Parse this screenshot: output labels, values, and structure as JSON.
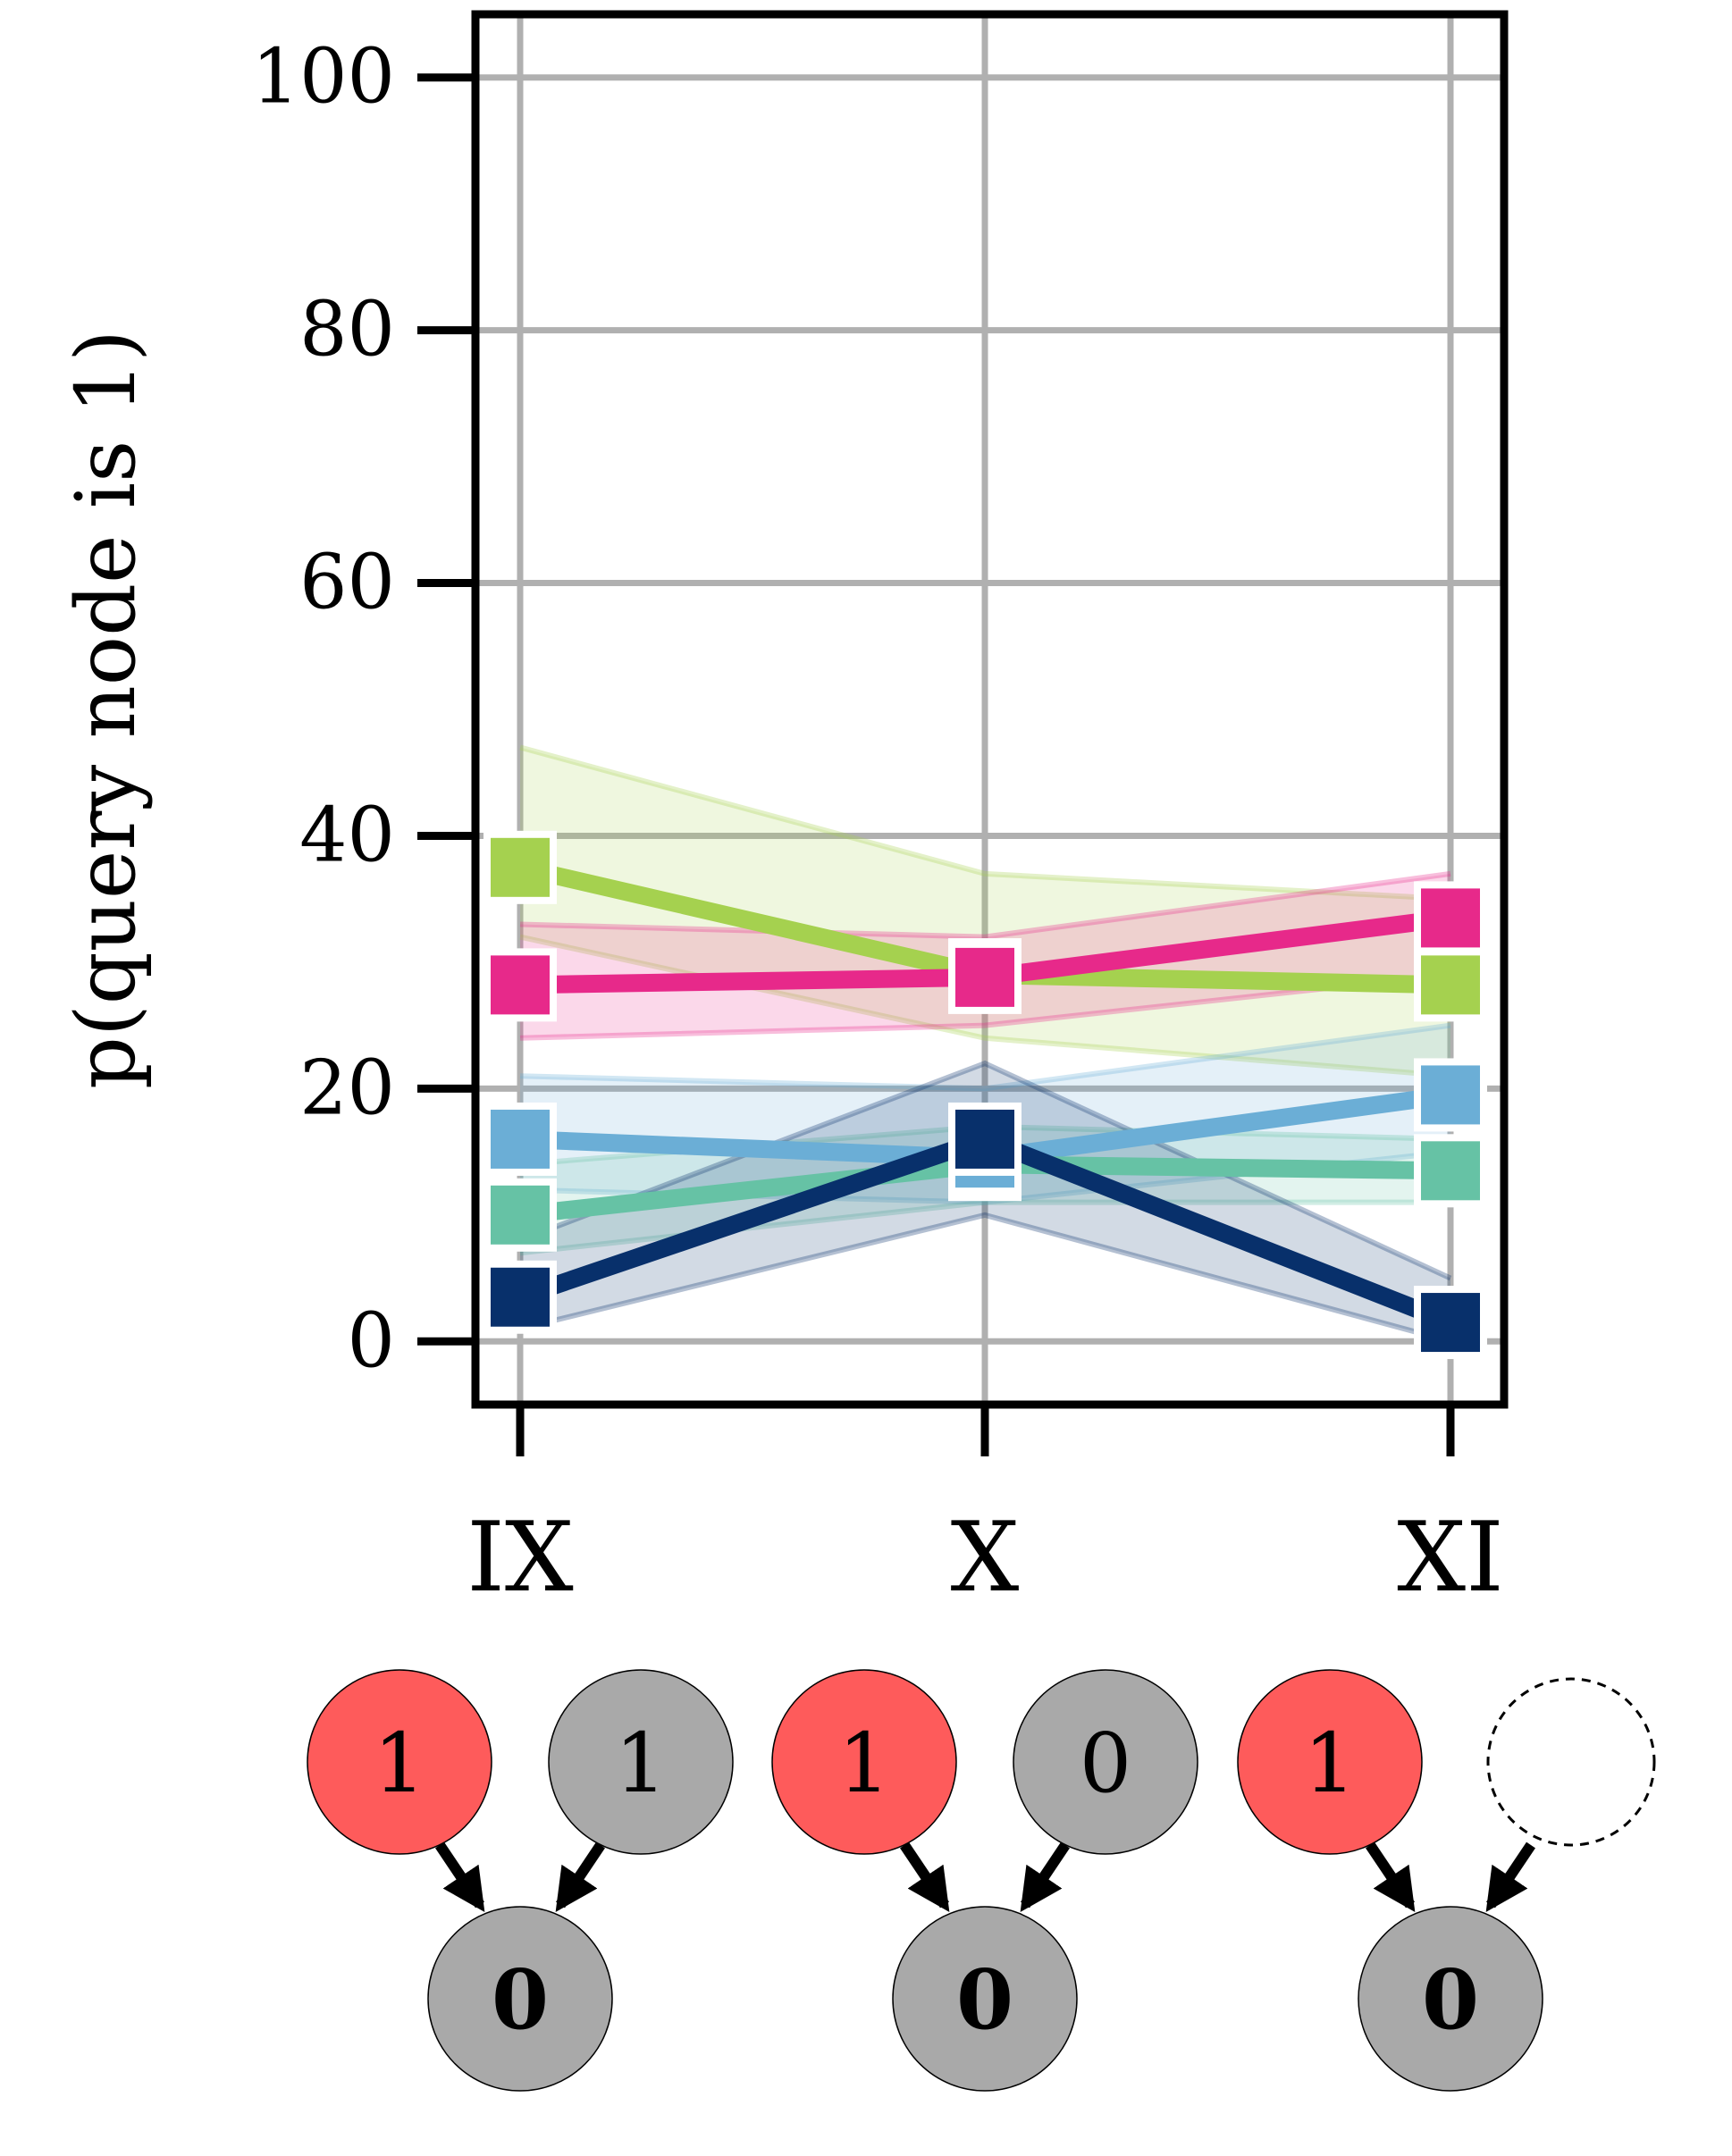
{
  "chart_data": {
    "type": "line",
    "title": "",
    "xlabel": "",
    "ylabel": "p(query node is 1)",
    "categories": [
      "IX",
      "X",
      "XI"
    ],
    "ylim": [
      -5,
      105
    ],
    "yticks": [
      0,
      20,
      40,
      60,
      80,
      100
    ],
    "grid": true,
    "legend": "none",
    "series": [
      {
        "color": "#a5d14f",
        "values": [
          37.5,
          29.0,
          28.2
        ],
        "band_low": [
          32,
          24,
          21
        ],
        "band_high": [
          47,
          37,
          35
        ]
      },
      {
        "color": "#e7298a",
        "values": [
          28.2,
          28.8,
          33.5
        ],
        "band_low": [
          24,
          25,
          29
        ],
        "band_high": [
          33,
          32,
          37
        ]
      },
      {
        "color": "#6baed6",
        "values": [
          16.0,
          14.5,
          19.5
        ],
        "band_low": [
          12,
          11,
          15
        ],
        "band_high": [
          21,
          20,
          25
        ]
      },
      {
        "color": "#66c2a5",
        "values": [
          10.0,
          14.0,
          13.5
        ],
        "band_low": [
          7,
          11,
          11
        ],
        "band_high": [
          14,
          17,
          16
        ]
      },
      {
        "color": "#08306b",
        "values": [
          3.5,
          16.0,
          1.5
        ],
        "band_low": [
          1,
          10,
          0
        ],
        "band_high": [
          8,
          22,
          5
        ]
      }
    ],
    "diagrams": [
      {
        "top_left": "1",
        "top_right": "1",
        "bottom": "0",
        "top_right_missing": false
      },
      {
        "top_left": "1",
        "top_right": "0",
        "bottom": "0",
        "top_right_missing": false
      },
      {
        "top_left": "1",
        "top_right": "",
        "bottom": "0",
        "top_right_missing": true
      }
    ],
    "diagram_colors": {
      "observed": "#fe5b5b",
      "node": "#a9a9a9"
    }
  }
}
